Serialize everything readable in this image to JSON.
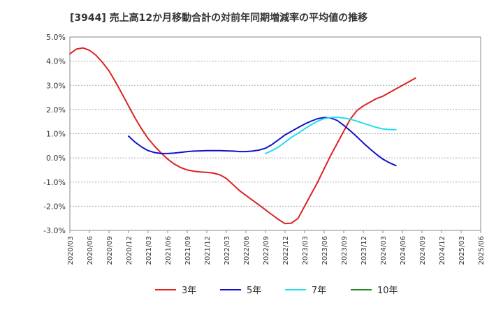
{
  "chart_data": {
    "type": "line",
    "title": "[3944]  売上高12か月移動合計の対前年同期増減率の平均値の推移",
    "xlabel": "",
    "ylabel": "",
    "ylim": [
      -3.0,
      5.0
    ],
    "yticks": [
      "5.0%",
      "4.0%",
      "3.0%",
      "2.0%",
      "1.0%",
      "0.0%",
      "-1.0%",
      "-2.0%",
      "-3.0%"
    ],
    "ytick_values": [
      5.0,
      4.0,
      3.0,
      2.0,
      1.0,
      0.0,
      -1.0,
      -2.0,
      -3.0
    ],
    "x_categories": [
      "2020/03",
      "2020/06",
      "2020/09",
      "2020/12",
      "2021/03",
      "2021/06",
      "2021/09",
      "2021/12",
      "2022/03",
      "2022/06",
      "2022/09",
      "2022/12",
      "2023/03",
      "2023/06",
      "2023/09",
      "2023/12",
      "2024/03",
      "2024/06",
      "2024/09",
      "2024/12",
      "2025/03",
      "2025/06"
    ],
    "grid": "horizontal-dashed",
    "legend_placement": "bottom",
    "series": [
      {
        "name": "3年",
        "color": "#dd2222",
        "points": [
          [
            "2020/03",
            4.3
          ],
          [
            "2020/04",
            4.5
          ],
          [
            "2020/05",
            4.55
          ],
          [
            "2020/06",
            4.45
          ],
          [
            "2020/07",
            4.25
          ],
          [
            "2020/08",
            3.95
          ],
          [
            "2020/09",
            3.6
          ],
          [
            "2020/10",
            3.15
          ],
          [
            "2020/11",
            2.65
          ],
          [
            "2020/12",
            2.15
          ],
          [
            "2021/01",
            1.65
          ],
          [
            "2021/02",
            1.2
          ],
          [
            "2021/03",
            0.8
          ],
          [
            "2021/04",
            0.48
          ],
          [
            "2021/05",
            0.2
          ],
          [
            "2021/06",
            -0.05
          ],
          [
            "2021/07",
            -0.25
          ],
          [
            "2021/08",
            -0.4
          ],
          [
            "2021/09",
            -0.5
          ],
          [
            "2021/10",
            -0.55
          ],
          [
            "2021/11",
            -0.58
          ],
          [
            "2021/12",
            -0.6
          ],
          [
            "2022/01",
            -0.63
          ],
          [
            "2022/02",
            -0.7
          ],
          [
            "2022/03",
            -0.85
          ],
          [
            "2022/04",
            -1.1
          ],
          [
            "2022/05",
            -1.35
          ],
          [
            "2022/06",
            -1.55
          ],
          [
            "2022/07",
            -1.75
          ],
          [
            "2022/08",
            -1.95
          ],
          [
            "2022/09",
            -2.15
          ],
          [
            "2022/10",
            -2.35
          ],
          [
            "2022/11",
            -2.55
          ],
          [
            "2022/12",
            -2.72
          ],
          [
            "2023/01",
            -2.7
          ],
          [
            "2023/02",
            -2.5
          ],
          [
            "2023/03",
            -2.0
          ],
          [
            "2023/04",
            -1.5
          ],
          [
            "2023/05",
            -1.0
          ],
          [
            "2023/06",
            -0.45
          ],
          [
            "2023/07",
            0.1
          ],
          [
            "2023/08",
            0.6
          ],
          [
            "2023/09",
            1.1
          ],
          [
            "2023/10",
            1.6
          ],
          [
            "2023/11",
            1.95
          ],
          [
            "2023/12",
            2.15
          ],
          [
            "2024/01",
            2.3
          ],
          [
            "2024/02",
            2.45
          ],
          [
            "2024/03",
            2.55
          ],
          [
            "2024/04",
            2.7
          ],
          [
            "2024/05",
            2.85
          ],
          [
            "2024/06",
            3.0
          ],
          [
            "2024/07",
            3.15
          ],
          [
            "2024/08",
            3.3
          ]
        ]
      },
      {
        "name": "5年",
        "color": "#1111cc",
        "points": [
          [
            "2020/12",
            0.9
          ],
          [
            "2021/01",
            0.65
          ],
          [
            "2021/02",
            0.45
          ],
          [
            "2021/03",
            0.3
          ],
          [
            "2021/04",
            0.22
          ],
          [
            "2021/05",
            0.18
          ],
          [
            "2021/06",
            0.18
          ],
          [
            "2021/07",
            0.2
          ],
          [
            "2021/08",
            0.23
          ],
          [
            "2021/09",
            0.26
          ],
          [
            "2021/10",
            0.28
          ],
          [
            "2021/11",
            0.29
          ],
          [
            "2021/12",
            0.3
          ],
          [
            "2022/01",
            0.3
          ],
          [
            "2022/02",
            0.3
          ],
          [
            "2022/03",
            0.29
          ],
          [
            "2022/04",
            0.28
          ],
          [
            "2022/05",
            0.26
          ],
          [
            "2022/06",
            0.26
          ],
          [
            "2022/07",
            0.28
          ],
          [
            "2022/08",
            0.32
          ],
          [
            "2022/09",
            0.4
          ],
          [
            "2022/10",
            0.55
          ],
          [
            "2022/11",
            0.75
          ],
          [
            "2022/12",
            0.95
          ],
          [
            "2023/01",
            1.1
          ],
          [
            "2023/02",
            1.25
          ],
          [
            "2023/03",
            1.4
          ],
          [
            "2023/04",
            1.52
          ],
          [
            "2023/05",
            1.62
          ],
          [
            "2023/06",
            1.67
          ],
          [
            "2023/07",
            1.65
          ],
          [
            "2023/08",
            1.55
          ],
          [
            "2023/09",
            1.35
          ],
          [
            "2023/10",
            1.12
          ],
          [
            "2023/11",
            0.88
          ],
          [
            "2023/12",
            0.62
          ],
          [
            "2024/01",
            0.38
          ],
          [
            "2024/02",
            0.15
          ],
          [
            "2024/03",
            -0.05
          ],
          [
            "2024/04",
            -0.2
          ],
          [
            "2024/05",
            -0.32
          ]
        ]
      },
      {
        "name": "7年",
        "color": "#22ddee",
        "points": [
          [
            "2022/09",
            0.18
          ],
          [
            "2022/10",
            0.3
          ],
          [
            "2022/11",
            0.45
          ],
          [
            "2022/12",
            0.65
          ],
          [
            "2023/01",
            0.85
          ],
          [
            "2023/02",
            1.02
          ],
          [
            "2023/03",
            1.2
          ],
          [
            "2023/04",
            1.37
          ],
          [
            "2023/05",
            1.52
          ],
          [
            "2023/06",
            1.62
          ],
          [
            "2023/07",
            1.67
          ],
          [
            "2023/08",
            1.68
          ],
          [
            "2023/09",
            1.65
          ],
          [
            "2023/10",
            1.6
          ],
          [
            "2023/11",
            1.52
          ],
          [
            "2023/12",
            1.43
          ],
          [
            "2024/01",
            1.35
          ],
          [
            "2024/02",
            1.26
          ],
          [
            "2024/03",
            1.2
          ],
          [
            "2024/04",
            1.17
          ],
          [
            "2024/05",
            1.17
          ]
        ]
      },
      {
        "name": "10年",
        "color": "#228822",
        "points": []
      }
    ]
  }
}
